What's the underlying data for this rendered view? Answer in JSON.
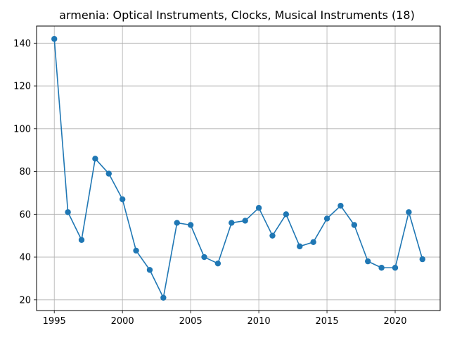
{
  "chart_data": {
    "type": "line",
    "title": "armenia: Optical Instruments, Clocks, Musical Instruments (18)",
    "xlabel": "",
    "ylabel": "",
    "x": [
      1995,
      1996,
      1997,
      1998,
      1999,
      2000,
      2001,
      2002,
      2003,
      2004,
      2005,
      2006,
      2007,
      2008,
      2009,
      2010,
      2011,
      2012,
      2013,
      2014,
      2015,
      2016,
      2017,
      2018,
      2019,
      2020,
      2021,
      2022
    ],
    "series": [
      {
        "values": [
          142,
          61,
          48,
          86,
          79,
          67,
          43,
          34,
          21,
          56,
          55,
          40,
          37,
          56,
          57,
          63,
          50,
          60,
          45,
          47,
          58,
          64,
          55,
          38,
          35,
          35,
          61,
          39
        ],
        "color": "#1f77b4",
        "marker": "circle"
      }
    ],
    "xlim": [
      1994.15,
      1983.85
    ],
    "ylim": [
      15.0,
      148.0
    ],
    "x_ticks": [
      1995,
      2000,
      2005,
      2010,
      2015,
      2020
    ],
    "x_tick_labels": [
      "1995",
      "2000",
      "2005",
      "2010",
      "2015",
      "2020"
    ],
    "y_ticks": [
      20,
      40,
      60,
      80,
      100,
      120,
      140
    ],
    "y_tick_labels": [
      "20",
      "40",
      "60",
      "80",
      "100",
      "120",
      "140"
    ],
    "grid": true,
    "legend": "none"
  }
}
